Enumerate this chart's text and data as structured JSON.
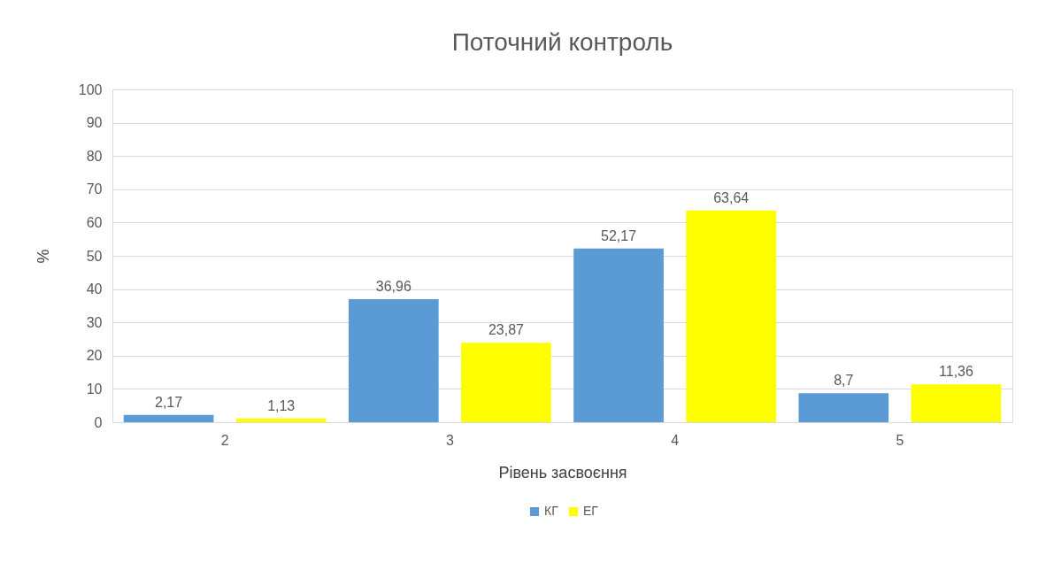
{
  "chart_data": {
    "type": "bar",
    "title": "Поточний контроль",
    "xlabel": "Рівень засвоєння",
    "ylabel": "%",
    "categories": [
      "2",
      "3",
      "4",
      "5"
    ],
    "series": [
      {
        "name": "КГ",
        "color": "#5b9bd5",
        "values": [
          2.17,
          36.96,
          52.17,
          8.7
        ],
        "value_labels": [
          "2,17",
          "36,96",
          "52,17",
          "8,7"
        ]
      },
      {
        "name": "ЕГ",
        "color": "#ffff00",
        "values": [
          1.13,
          23.87,
          63.64,
          11.36
        ],
        "value_labels": [
          "1,13",
          "23,87",
          "63,64",
          "11,36"
        ]
      }
    ],
    "ylim": [
      0,
      100
    ],
    "yticks": [
      0,
      10,
      20,
      30,
      40,
      50,
      60,
      70,
      80,
      90,
      100
    ],
    "grid": "y",
    "legend": "bottom"
  }
}
